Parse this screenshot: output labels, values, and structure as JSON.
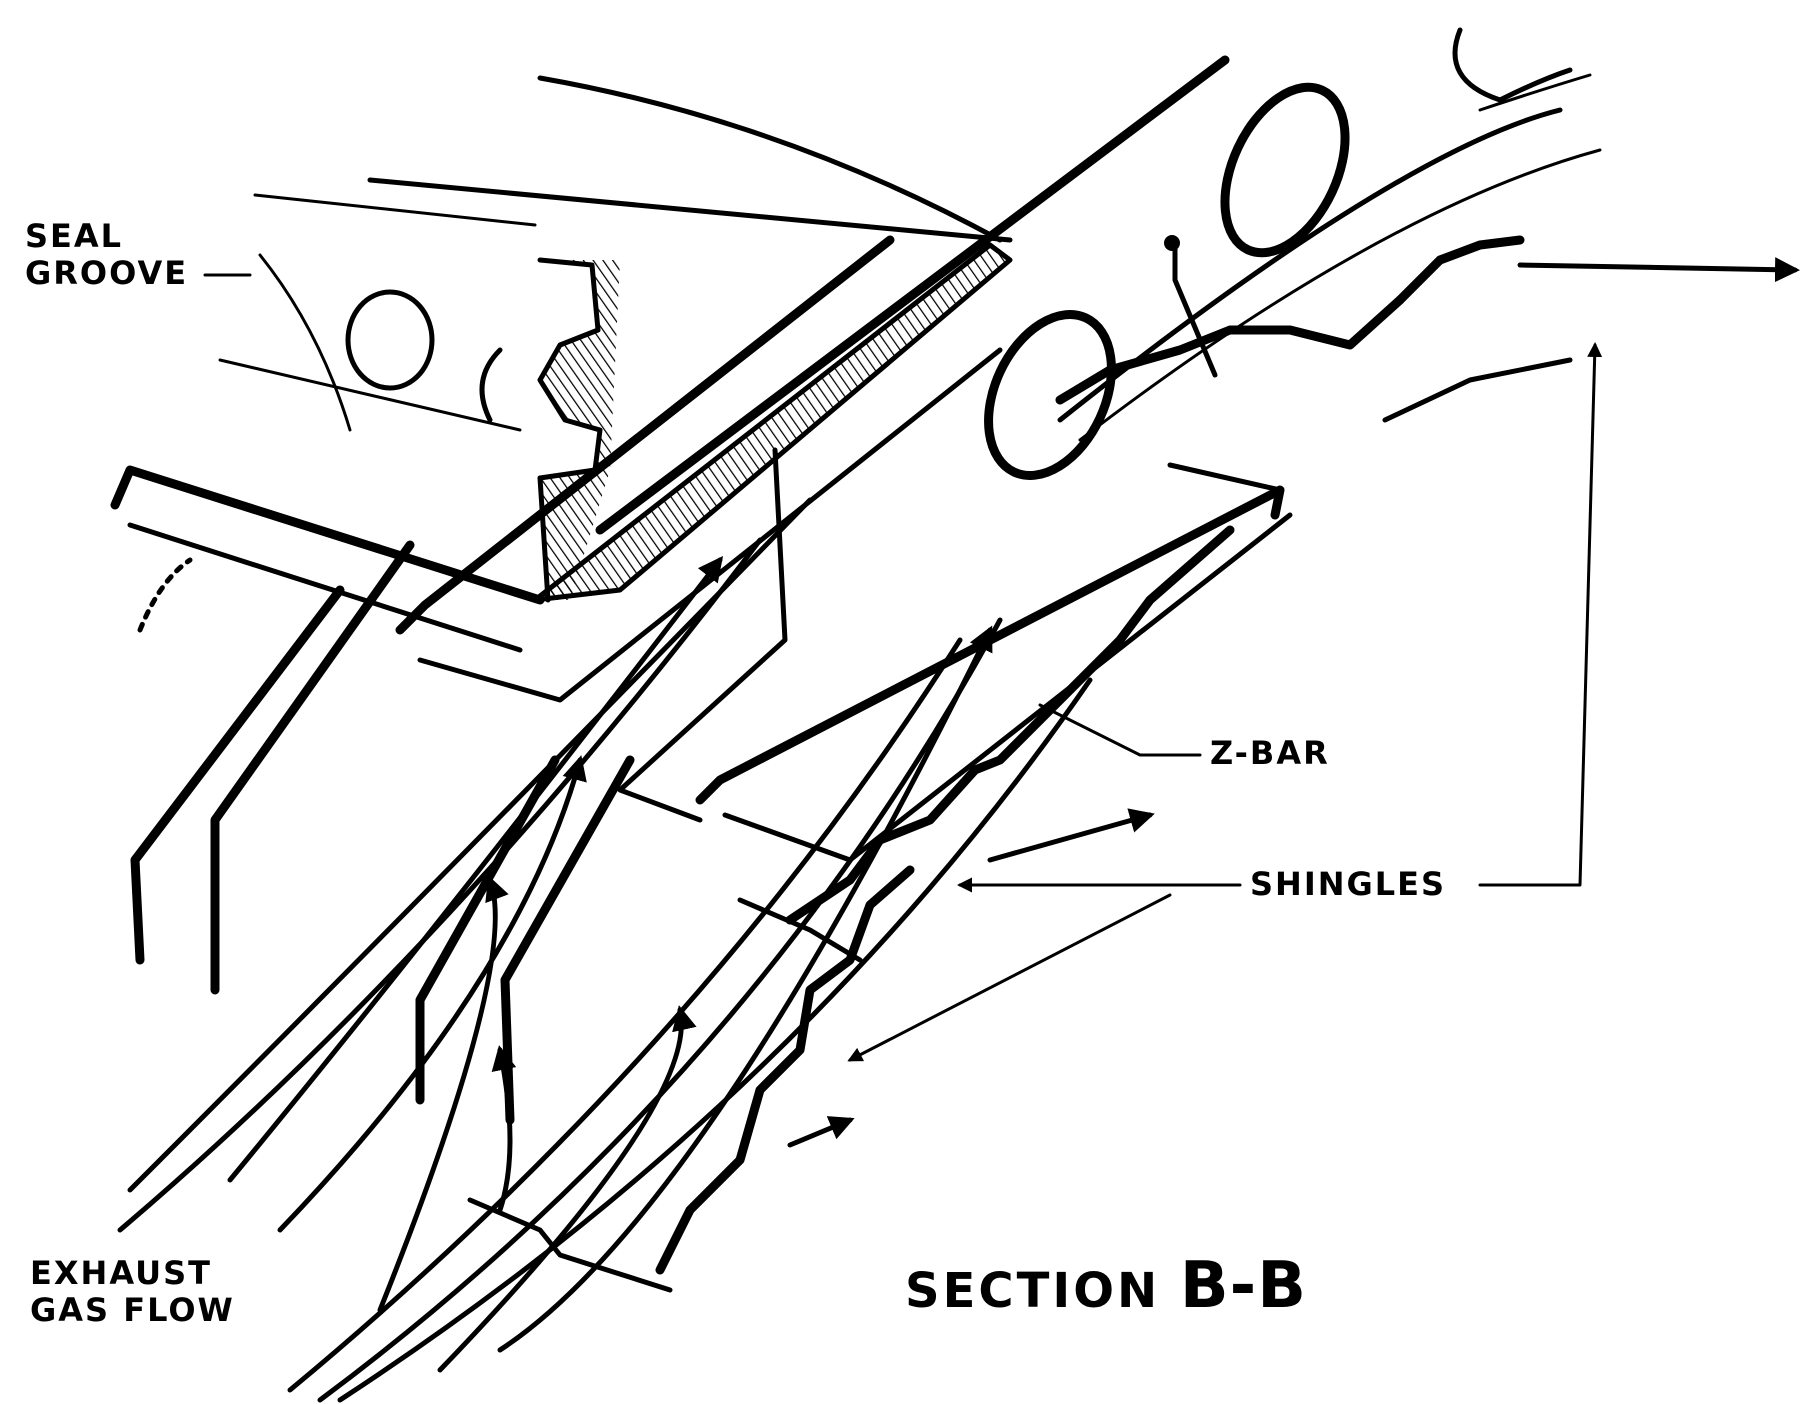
{
  "labels": {
    "seal_groove_line1": "SEAL",
    "seal_groove_line2": "GROOVE",
    "z_bar": "Z-BAR",
    "shingles": "SHINGLES",
    "exhaust_line1": "EXHAUST",
    "exhaust_line2": "GAS FLOW",
    "section_word": "SECTION",
    "section_id": "B-B"
  },
  "colors": {
    "ink": "#000000",
    "paper": "#ffffff"
  }
}
